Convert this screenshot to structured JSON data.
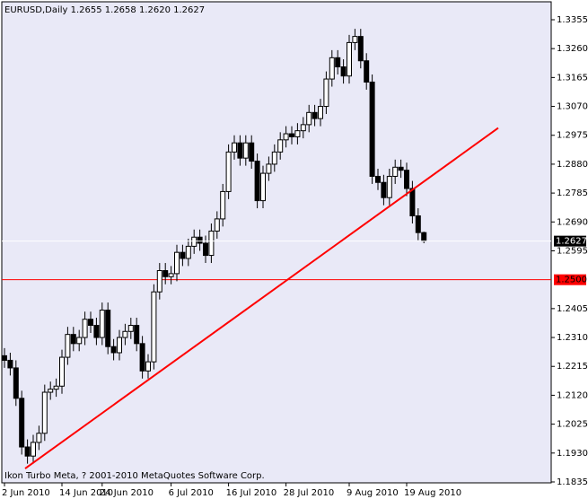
{
  "chart_data": {
    "type": "candlestick",
    "title": "EURUSD,Daily  1.2655 1.2658 1.2620 1.2627",
    "footer": "Ikon Turbo Meta, ? 2001-2010 MetaQuotes Software Corp.",
    "background": "#e9e9f7",
    "bull_color": "#ffffff",
    "bear_color": "#000000",
    "categories": [
      "2 Jun 2010",
      null,
      null,
      null,
      null,
      null,
      null,
      null,
      null,
      null,
      "14 Jun 2010",
      null,
      null,
      null,
      null,
      null,
      null,
      "24 Jun 2010",
      null,
      null,
      null,
      null,
      null,
      null,
      null,
      null,
      null,
      null,
      null,
      "6 Jul 2010",
      null,
      null,
      null,
      null,
      null,
      null,
      null,
      null,
      null,
      "16 Jul 2010",
      null,
      null,
      null,
      null,
      null,
      null,
      null,
      null,
      null,
      "28 Jul 2010",
      null,
      null,
      null,
      null,
      null,
      null,
      null,
      null,
      null,
      null,
      "9 Aug 2010",
      null,
      null,
      null,
      null,
      null,
      null,
      null,
      null,
      null,
      "19 Aug 2010",
      null,
      null,
      null
    ],
    "series": {
      "open": [
        1.225,
        1.2235,
        1.221,
        1.211,
        1.195,
        1.192,
        1.1965,
        1.1995,
        1.213,
        1.214,
        1.215,
        1.2245,
        1.232,
        1.229,
        1.231,
        1.237,
        1.235,
        1.231,
        1.24,
        1.228,
        1.226,
        1.231,
        1.233,
        1.235,
        1.229,
        1.22,
        1.223,
        1.246,
        1.253,
        1.251,
        1.252,
        1.259,
        1.257,
        1.261,
        1.264,
        1.262,
        1.258,
        1.266,
        1.27,
        1.279,
        1.292,
        1.295,
        1.29,
        1.295,
        1.289,
        1.276,
        1.285,
        1.288,
        1.292,
        1.296,
        1.298,
        1.297,
        1.299,
        1.301,
        1.305,
        1.303,
        1.307,
        1.316,
        1.323,
        1.32,
        1.317,
        1.328,
        1.33,
        1.322,
        1.315,
        1.284,
        1.282,
        1.277,
        1.284,
        1.287,
        1.286,
        1.28,
        1.271,
        1.2655
      ],
      "high": [
        1.2275,
        1.226,
        1.2235,
        1.2135,
        1.1975,
        1.199,
        1.202,
        1.2155,
        1.2165,
        1.2175,
        1.227,
        1.2345,
        1.2345,
        1.2335,
        1.2395,
        1.2395,
        1.2375,
        1.2425,
        1.2425,
        1.2305,
        1.2335,
        1.2355,
        1.2375,
        1.2375,
        1.2315,
        1.2255,
        1.2485,
        1.2555,
        1.2555,
        1.2545,
        1.2615,
        1.2615,
        1.2635,
        1.2665,
        1.2665,
        1.2645,
        1.2685,
        1.2725,
        1.2815,
        1.2945,
        1.2975,
        1.2975,
        1.2975,
        1.2975,
        1.2915,
        1.2875,
        1.2905,
        1.2945,
        1.2985,
        1.3005,
        1.3005,
        1.3015,
        1.3035,
        1.3075,
        1.3075,
        1.3095,
        1.3185,
        1.3255,
        1.3255,
        1.3225,
        1.3305,
        1.3325,
        1.3325,
        1.3245,
        1.3175,
        1.2865,
        1.2845,
        1.2865,
        1.2895,
        1.2895,
        1.2885,
        1.2825,
        1.2735,
        1.2658
      ],
      "low": [
        1.221,
        1.2185,
        1.2085,
        1.1925,
        1.1895,
        1.1895,
        1.194,
        1.197,
        1.2105,
        1.2115,
        1.2125,
        1.222,
        1.2265,
        1.2265,
        1.2285,
        1.2325,
        1.2285,
        1.2285,
        1.2255,
        1.2235,
        1.2235,
        1.2285,
        1.2305,
        1.2265,
        1.2175,
        1.2175,
        1.2205,
        1.2435,
        1.2485,
        1.2485,
        1.2495,
        1.2545,
        1.2545,
        1.2585,
        1.2595,
        1.2555,
        1.2555,
        1.2635,
        1.2675,
        1.2765,
        1.2895,
        1.2875,
        1.2875,
        1.2865,
        1.2735,
        1.2735,
        1.2825,
        1.2855,
        1.2895,
        1.2935,
        1.2945,
        1.2945,
        1.2965,
        1.2985,
        1.3005,
        1.3005,
        1.3045,
        1.3135,
        1.3175,
        1.3145,
        1.3145,
        1.3255,
        1.3195,
        1.3125,
        1.2815,
        1.2795,
        1.2745,
        1.2745,
        1.2815,
        1.2835,
        1.2775,
        1.2685,
        1.263,
        1.262
      ],
      "close": [
        1.2235,
        1.221,
        1.211,
        1.195,
        1.192,
        1.1965,
        1.1995,
        1.213,
        1.214,
        1.215,
        1.2245,
        1.232,
        1.229,
        1.231,
        1.237,
        1.235,
        1.231,
        1.24,
        1.228,
        1.226,
        1.231,
        1.233,
        1.235,
        1.229,
        1.22,
        1.223,
        1.246,
        1.253,
        1.251,
        1.252,
        1.259,
        1.257,
        1.261,
        1.264,
        1.262,
        1.258,
        1.266,
        1.27,
        1.279,
        1.292,
        1.295,
        1.29,
        1.295,
        1.289,
        1.276,
        1.285,
        1.288,
        1.292,
        1.296,
        1.298,
        1.297,
        1.299,
        1.301,
        1.305,
        1.303,
        1.307,
        1.316,
        1.323,
        1.32,
        1.317,
        1.328,
        1.33,
        1.322,
        1.315,
        1.284,
        1.282,
        1.277,
        1.284,
        1.287,
        1.286,
        1.28,
        1.271,
        1.2655,
        1.2627
      ]
    },
    "ylim": [
      1.1832,
      1.3414
    ],
    "yticks": [
      {
        "value": 1.3355,
        "label": "1.3355"
      },
      {
        "value": 1.326,
        "label": "1.3260"
      },
      {
        "value": 1.3165,
        "label": "1.3165"
      },
      {
        "value": 1.307,
        "label": "1.3070"
      },
      {
        "value": 1.2975,
        "label": "1.2975"
      },
      {
        "value": 1.288,
        "label": "1.2880"
      },
      {
        "value": 1.2785,
        "label": "1.2785"
      },
      {
        "value": 1.269,
        "label": "1.2690"
      },
      {
        "value": 1.2595,
        "label": "1.2595"
      },
      {
        "value": 1.2405,
        "label": "1.2405"
      },
      {
        "value": 1.231,
        "label": "1.2310"
      },
      {
        "value": 1.2215,
        "label": "1.2215"
      },
      {
        "value": 1.212,
        "label": "1.2120"
      },
      {
        "value": 1.2025,
        "label": "1.2025"
      },
      {
        "value": 1.193,
        "label": "1.1930"
      },
      {
        "value": 1.1835,
        "label": "1.1835"
      }
    ],
    "hline": {
      "value": 1.25,
      "label": "1.2500",
      "color": "#ff0000"
    },
    "bid_line_color": "#ffffff",
    "trendline": {
      "start": 1.1879,
      "end": 1.2999,
      "color": "#ff0000"
    }
  }
}
